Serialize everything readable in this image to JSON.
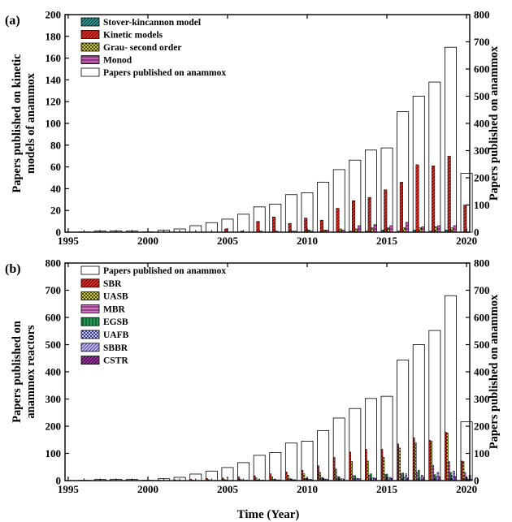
{
  "xlabel": "Time (Year)",
  "chart_data": [
    {
      "panel_label": "(a)",
      "type": "bar",
      "title": "",
      "ylabel": "Papers published on kinetic models of anammox",
      "ylabel_lines": [
        "Papers published on kinetic",
        "models of anammox"
      ],
      "y2label": "Papers published on anammox",
      "ylim": [
        0,
        200
      ],
      "y2lim": [
        0,
        800
      ],
      "yticks": [
        0,
        20,
        40,
        60,
        80,
        100,
        120,
        140,
        160,
        180,
        200
      ],
      "y2ticks": [
        0,
        100,
        200,
        300,
        400,
        500,
        600,
        700,
        800
      ],
      "xlim": [
        1994.8,
        2020.2
      ],
      "xticks": [
        1995,
        2000,
        2005,
        2010,
        2015,
        2020
      ],
      "legend_position": "top-left",
      "x": [
        1995,
        1996,
        1997,
        1998,
        1999,
        2000,
        2001,
        2002,
        2003,
        2004,
        2005,
        2006,
        2007,
        2008,
        2009,
        2010,
        2011,
        2012,
        2013,
        2014,
        2015,
        2016,
        2017,
        2018,
        2019,
        2020
      ],
      "total": {
        "name": "Papers published on anammox",
        "axis": "right",
        "color": "#ffffff",
        "values": [
          0,
          1,
          4,
          5,
          4,
          1,
          7,
          12,
          24,
          35,
          48,
          66,
          93,
          103,
          138,
          145,
          184,
          230,
          265,
          302,
          310,
          443,
          500,
          552,
          680,
          216
        ]
      },
      "series": [
        {
          "name": "Stover-kincannon model",
          "color": "#2a9d9a",
          "pattern": "hatch-dark",
          "values": [
            0,
            0,
            0,
            0,
            0,
            0,
            0,
            0,
            0,
            0,
            0,
            0,
            0,
            0,
            0,
            0,
            0,
            0,
            1,
            1,
            2,
            1,
            2,
            1,
            2,
            0
          ]
        },
        {
          "name": "Kinetic models",
          "color": "#e52a22",
          "pattern": "hatch-dark",
          "values": [
            0,
            0,
            0,
            0,
            0,
            0,
            0,
            0,
            0,
            0,
            3,
            1,
            10,
            14,
            8,
            13,
            11,
            22,
            29,
            32,
            39,
            46,
            62,
            61,
            70,
            25
          ]
        },
        {
          "name": "Grau- second order",
          "color": "#e7e43c",
          "pattern": "cross-dark",
          "values": [
            0,
            0,
            0,
            0,
            0,
            0,
            0,
            0,
            0,
            0,
            0,
            0,
            1,
            1,
            1,
            2,
            2,
            3,
            3,
            4,
            4,
            4,
            4,
            5,
            4,
            0
          ]
        },
        {
          "name": "Monod",
          "color": "#cc5ab8",
          "pattern": "hlines-dark",
          "values": [
            0,
            0,
            0,
            0,
            0,
            0,
            0,
            0,
            0,
            0,
            0,
            0,
            0,
            0,
            1,
            1,
            2,
            2,
            6,
            7,
            6,
            9,
            5,
            6,
            6,
            0
          ]
        }
      ]
    },
    {
      "panel_label": "(b)",
      "type": "bar",
      "title": "",
      "ylabel": "Papers published on anammox reactors",
      "ylabel_lines": [
        "Papers published on",
        "anammox reactors"
      ],
      "y2label": "Papers published on anammox",
      "ylim": [
        0,
        800
      ],
      "y2lim": [
        0,
        800
      ],
      "yticks": [
        0,
        100,
        200,
        300,
        400,
        500,
        600,
        700,
        800
      ],
      "y2ticks": [
        0,
        100,
        200,
        300,
        400,
        500,
        600,
        700,
        800
      ],
      "xlim": [
        1994.8,
        2020.2
      ],
      "xticks": [
        1995,
        2000,
        2005,
        2010,
        2015,
        2020
      ],
      "legend_position": "top-left",
      "x": [
        1995,
        1996,
        1997,
        1998,
        1999,
        2000,
        2001,
        2002,
        2003,
        2004,
        2005,
        2006,
        2007,
        2008,
        2009,
        2010,
        2011,
        2012,
        2013,
        2014,
        2015,
        2016,
        2017,
        2018,
        2019,
        2020
      ],
      "total": {
        "name": "Papers published on anammox",
        "axis": "right",
        "color": "#ffffff",
        "values": [
          0,
          1,
          4,
          5,
          4,
          1,
          7,
          12,
          24,
          35,
          48,
          66,
          93,
          103,
          138,
          145,
          184,
          230,
          265,
          302,
          310,
          443,
          500,
          552,
          680,
          216
        ]
      },
      "series": [
        {
          "name": "SBR",
          "color": "#e52a22",
          "pattern": "hatch-dark",
          "values": [
            0,
            0,
            1,
            1,
            1,
            0,
            2,
            3,
            5,
            8,
            10,
            14,
            18,
            25,
            32,
            38,
            55,
            85,
            105,
            115,
            115,
            135,
            158,
            148,
            178,
            72
          ]
        },
        {
          "name": "UASB",
          "color": "#e7e43c",
          "pattern": "cross-dark",
          "values": [
            0,
            0,
            0,
            0,
            0,
            0,
            1,
            1,
            2,
            4,
            5,
            6,
            10,
            14,
            20,
            25,
            30,
            42,
            70,
            72,
            85,
            120,
            140,
            145,
            175,
            70
          ]
        },
        {
          "name": "MBR",
          "color": "#d76fc9",
          "pattern": "hlines-dark",
          "values": [
            0,
            0,
            0,
            0,
            0,
            0,
            0,
            0,
            1,
            1,
            2,
            3,
            3,
            5,
            7,
            8,
            12,
            15,
            18,
            20,
            22,
            25,
            30,
            55,
            70,
            30
          ]
        },
        {
          "name": "EGSB",
          "color": "#1e9a52",
          "pattern": "vlines-dark",
          "values": [
            0,
            0,
            0,
            0,
            0,
            0,
            0,
            0,
            0,
            0,
            1,
            2,
            3,
            4,
            6,
            8,
            10,
            14,
            18,
            25,
            24,
            28,
            38,
            22,
            30,
            12
          ]
        },
        {
          "name": "UAFB",
          "color": "#1b1f8c",
          "pattern": "cross-light",
          "values": [
            0,
            0,
            0,
            0,
            0,
            0,
            0,
            0,
            0,
            0,
            0,
            1,
            1,
            2,
            3,
            4,
            5,
            6,
            8,
            10,
            10,
            12,
            10,
            15,
            18,
            5
          ]
        },
        {
          "name": "SBBR",
          "color": "#6a5ec6",
          "pattern": "hatch-light",
          "values": [
            0,
            0,
            0,
            0,
            0,
            0,
            0,
            0,
            0,
            1,
            1,
            2,
            2,
            3,
            4,
            5,
            6,
            7,
            8,
            10,
            12,
            25,
            20,
            30,
            35,
            20
          ]
        },
        {
          "name": "CSTR",
          "color": "#9a2fa0",
          "pattern": "hatch-dark",
          "values": [
            0,
            0,
            0,
            0,
            0,
            0,
            0,
            0,
            0,
            0,
            1,
            1,
            1,
            2,
            2,
            3,
            4,
            5,
            6,
            8,
            8,
            10,
            12,
            14,
            15,
            5
          ]
        }
      ]
    }
  ]
}
